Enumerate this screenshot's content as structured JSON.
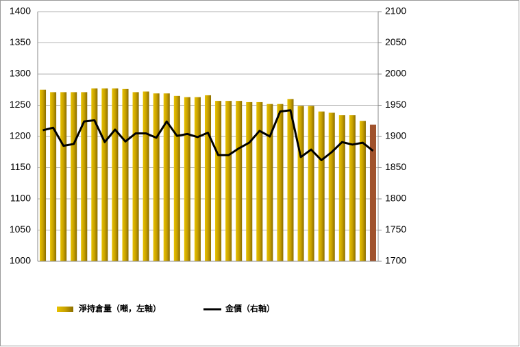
{
  "chart_data": {
    "type": "bar-line",
    "categories": [
      null,
      null,
      null,
      null,
      null,
      null,
      null,
      null,
      null,
      null,
      null,
      null,
      null,
      null,
      null,
      null,
      null,
      null,
      null,
      null,
      null,
      null,
      null,
      null,
      null,
      null,
      null,
      null,
      null,
      null,
      null,
      null,
      null
    ],
    "series": [
      {
        "name": "淨持倉量（噸，左軸）",
        "type": "bar",
        "axis": "y",
        "color": "#c9a200",
        "colors": [
          "#c9a200",
          "#c9a200",
          "#c9a200",
          "#c9a200",
          "#c9a200",
          "#c9a200",
          "#c9a200",
          "#c9a200",
          "#c9a200",
          "#c9a200",
          "#c9a200",
          "#c9a200",
          "#c9a200",
          "#c9a200",
          "#c9a200",
          "#c9a200",
          "#c9a200",
          "#c9a200",
          "#c9a200",
          "#c9a200",
          "#c9a200",
          "#c9a200",
          "#c9a200",
          "#c9a200",
          "#c9a200",
          "#c9a200",
          "#c9a200",
          "#c9a200",
          "#c9a200",
          "#c9a200",
          "#c9a200",
          "#c9a200",
          "#a0522d"
        ],
        "values": [
          1275,
          1271,
          1271,
          1271,
          1271,
          1277,
          1277,
          1277,
          1276,
          1271,
          1272,
          1269,
          1269,
          1265,
          1263,
          1263,
          1266,
          1257,
          1257,
          1257,
          1255,
          1255,
          1252,
          1252,
          1260,
          1249,
          1249,
          1240,
          1238,
          1234,
          1234,
          1225,
          1219
        ]
      },
      {
        "name": "金價（右軸）",
        "type": "line",
        "axis": "y2",
        "color": "#000000",
        "values": [
          1910,
          1914,
          1885,
          1888,
          1924,
          1926,
          1891,
          1911,
          1892,
          1905,
          1905,
          1898,
          1924,
          1901,
          1904,
          1899,
          1906,
          1870,
          1870,
          1881,
          1890,
          1909,
          1900,
          1940,
          1942,
          1867,
          1879,
          1862,
          1875,
          1891,
          1887,
          1890,
          1877
        ]
      }
    ],
    "ylim": [
      1000,
      1400
    ],
    "yticks": [
      1000,
      1050,
      1100,
      1150,
      1200,
      1250,
      1300,
      1350,
      1400
    ],
    "y2lim": [
      1700,
      2100
    ],
    "y2ticks": [
      1700,
      1750,
      1800,
      1850,
      1900,
      1950,
      2000,
      2050,
      2100
    ],
    "grid": true,
    "legend": "bottom"
  }
}
